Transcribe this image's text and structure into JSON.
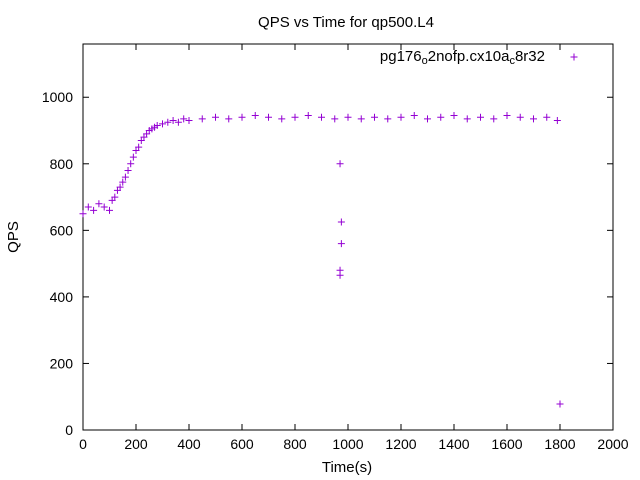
{
  "chart_data": {
    "type": "scatter",
    "title": "QPS vs Time for qp500.L4",
    "xlabel": "Time(s)",
    "ylabel": "QPS",
    "xlim": [
      0,
      2000
    ],
    "ylim": [
      0,
      1160
    ],
    "xticks": [
      0,
      200,
      400,
      600,
      800,
      1000,
      1200,
      1400,
      1600,
      1800,
      2000
    ],
    "yticks": [
      0,
      200,
      400,
      600,
      800,
      1000
    ],
    "grid": false,
    "legend_position": "top-right",
    "marker": "plus",
    "series": [
      {
        "name_parts": [
          "pg176",
          "o",
          "2nofp.cx10a",
          "c",
          "8r32"
        ],
        "color": "#9400d3",
        "points": [
          [
            0,
            650
          ],
          [
            20,
            670
          ],
          [
            40,
            660
          ],
          [
            60,
            680
          ],
          [
            80,
            670
          ],
          [
            100,
            660
          ],
          [
            110,
            690
          ],
          [
            120,
            700
          ],
          [
            130,
            720
          ],
          [
            140,
            730
          ],
          [
            150,
            745
          ],
          [
            160,
            760
          ],
          [
            170,
            780
          ],
          [
            180,
            800
          ],
          [
            190,
            820
          ],
          [
            200,
            840
          ],
          [
            210,
            850
          ],
          [
            220,
            870
          ],
          [
            230,
            880
          ],
          [
            240,
            890
          ],
          [
            250,
            900
          ],
          [
            260,
            905
          ],
          [
            270,
            910
          ],
          [
            280,
            915
          ],
          [
            300,
            920
          ],
          [
            320,
            925
          ],
          [
            340,
            930
          ],
          [
            360,
            925
          ],
          [
            380,
            935
          ],
          [
            400,
            930
          ],
          [
            450,
            935
          ],
          [
            500,
            940
          ],
          [
            550,
            935
          ],
          [
            600,
            940
          ],
          [
            650,
            945
          ],
          [
            700,
            940
          ],
          [
            750,
            935
          ],
          [
            800,
            940
          ],
          [
            850,
            945
          ],
          [
            900,
            940
          ],
          [
            950,
            935
          ],
          [
            970,
            800
          ],
          [
            975,
            625
          ],
          [
            975,
            560
          ],
          [
            970,
            480
          ],
          [
            970,
            465
          ],
          [
            1000,
            940
          ],
          [
            1050,
            935
          ],
          [
            1100,
            940
          ],
          [
            1150,
            935
          ],
          [
            1200,
            940
          ],
          [
            1250,
            945
          ],
          [
            1300,
            935
          ],
          [
            1350,
            940
          ],
          [
            1400,
            945
          ],
          [
            1450,
            935
          ],
          [
            1500,
            940
          ],
          [
            1550,
            935
          ],
          [
            1600,
            945
          ],
          [
            1650,
            940
          ],
          [
            1700,
            935
          ],
          [
            1750,
            940
          ],
          [
            1790,
            930
          ],
          [
            1800,
            78
          ]
        ]
      }
    ]
  }
}
